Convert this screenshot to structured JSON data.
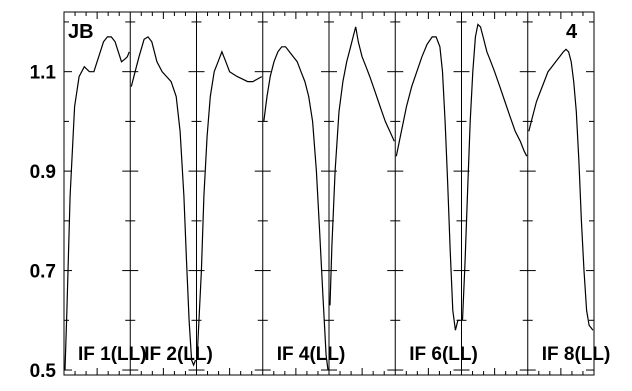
{
  "chart_data": {
    "type": "line",
    "corner_left": "JB",
    "corner_right": "4",
    "ylim": [
      0.49,
      1.22
    ],
    "y_ticks": [
      "0.5",
      "0.7",
      "0.9",
      "1.1"
    ],
    "y_tick_values": [
      0.5,
      0.7,
      0.9,
      1.1
    ],
    "panels": [
      {
        "label": "IF 1(LL)",
        "x": [
          0,
          0.03,
          0.08,
          0.15,
          0.22,
          0.3,
          0.38,
          0.45,
          0.5,
          0.55,
          0.6,
          0.66,
          0.72,
          0.78,
          0.83,
          0.88,
          0.93,
          0.97,
          1.0
        ],
        "y": [
          0.5,
          0.62,
          0.85,
          1.03,
          1.09,
          1.11,
          1.1,
          1.1,
          1.12,
          1.14,
          1.16,
          1.17,
          1.17,
          1.16,
          1.14,
          1.12,
          1.125,
          1.13,
          1.14
        ]
      },
      {
        "label": "IF 2(LL)",
        "x": [
          0,
          0.06,
          0.12,
          0.2,
          0.26,
          0.32,
          0.4,
          0.48,
          0.55,
          0.62,
          0.7,
          0.76,
          0.82,
          0.86,
          0.9,
          0.94,
          0.97,
          1.0
        ],
        "y": [
          1.07,
          1.1,
          1.13,
          1.165,
          1.17,
          1.16,
          1.12,
          1.1,
          1.09,
          1.08,
          1.05,
          0.98,
          0.85,
          0.72,
          0.6,
          0.52,
          0.51,
          0.52
        ]
      },
      {
        "label": "",
        "x": [
          0,
          0.06,
          0.1,
          0.15,
          0.2,
          0.26,
          0.32,
          0.38,
          0.44,
          0.5,
          0.56,
          0.62,
          0.7,
          0.78,
          0.86,
          0.93,
          1.0
        ],
        "y": [
          0.54,
          0.7,
          0.85,
          0.97,
          1.05,
          1.1,
          1.12,
          1.14,
          1.12,
          1.1,
          1.095,
          1.09,
          1.085,
          1.08,
          1.08,
          1.085,
          1.09
        ]
      },
      {
        "label": "IF 4(LL)",
        "x": [
          0,
          0.05,
          0.1,
          0.16,
          0.22,
          0.28,
          0.34,
          0.4,
          0.46,
          0.52,
          0.58,
          0.64,
          0.7,
          0.76,
          0.82,
          0.87,
          0.92,
          0.97,
          1.0
        ],
        "y": [
          1.0,
          1.05,
          1.09,
          1.12,
          1.14,
          1.15,
          1.15,
          1.14,
          1.13,
          1.12,
          1.1,
          1.08,
          1.05,
          1.0,
          0.9,
          0.78,
          0.65,
          0.53,
          0.5
        ]
      },
      {
        "label": "",
        "x": [
          0,
          0.03,
          0.08,
          0.14,
          0.2,
          0.26,
          0.32,
          0.36,
          0.4,
          0.44,
          0.5,
          0.56,
          0.62,
          0.7,
          0.78,
          0.86,
          0.93,
          1.0
        ],
        "y": [
          0.63,
          0.75,
          0.9,
          1.02,
          1.08,
          1.12,
          1.15,
          1.17,
          1.19,
          1.16,
          1.13,
          1.11,
          1.09,
          1.06,
          1.03,
          1.0,
          0.98,
          0.96
        ]
      },
      {
        "label": "IF 6(LL)",
        "x": [
          0,
          0.08,
          0.16,
          0.24,
          0.32,
          0.4,
          0.48,
          0.56,
          0.62,
          0.68,
          0.72,
          0.76,
          0.8,
          0.84,
          0.88,
          0.92,
          0.96,
          1.0
        ],
        "y": [
          0.93,
          0.98,
          1.03,
          1.07,
          1.1,
          1.13,
          1.155,
          1.17,
          1.17,
          1.15,
          1.1,
          1.0,
          0.88,
          0.74,
          0.62,
          0.58,
          0.6,
          0.6
        ]
      },
      {
        "label": "",
        "x": [
          0,
          0.04,
          0.08,
          0.12,
          0.16,
          0.2,
          0.24,
          0.28,
          0.32,
          0.38,
          0.44,
          0.5,
          0.58,
          0.66,
          0.74,
          0.82,
          0.9,
          0.96,
          1.0
        ],
        "y": [
          0.6,
          0.72,
          0.86,
          1.0,
          1.1,
          1.17,
          1.195,
          1.19,
          1.17,
          1.14,
          1.12,
          1.1,
          1.07,
          1.04,
          1.01,
          0.98,
          0.96,
          0.94,
          0.93
        ]
      },
      {
        "label": "IF 8(LL)",
        "x": [
          0,
          0.06,
          0.12,
          0.18,
          0.24,
          0.3,
          0.36,
          0.42,
          0.48,
          0.54,
          0.58,
          0.62,
          0.66,
          0.7,
          0.74,
          0.78,
          0.82,
          0.86,
          0.9,
          0.94,
          1.0
        ],
        "y": [
          0.98,
          1.01,
          1.04,
          1.06,
          1.08,
          1.1,
          1.11,
          1.12,
          1.13,
          1.14,
          1.145,
          1.14,
          1.12,
          1.08,
          1.02,
          0.92,
          0.8,
          0.7,
          0.62,
          0.59,
          0.58
        ]
      }
    ]
  }
}
